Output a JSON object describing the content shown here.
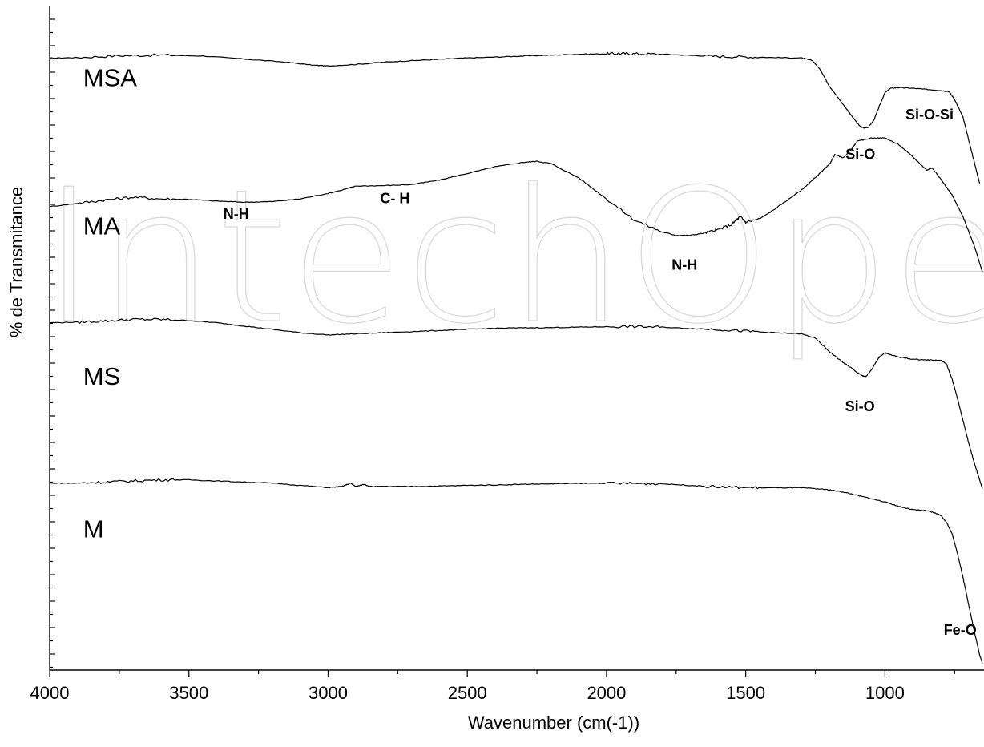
{
  "chart_data": {
    "type": "line",
    "xlabel": "Wavenumber (cm(-1))",
    "ylabel": "% de Transmitance",
    "xlim": [
      4000,
      650
    ],
    "x_direction": "reversed",
    "x_ticks": [
      4000,
      3500,
      3000,
      2500,
      2000,
      1500,
      1000
    ],
    "y_ticks_labeled": false,
    "grid": false,
    "legend": "none",
    "watermark": "IntechOpen",
    "series": [
      {
        "name": "MSA",
        "x": [
          4000,
          3900,
          3750,
          3600,
          3450,
          3300,
          3150,
          3050,
          3000,
          2900,
          2800,
          2700,
          2600,
          2500,
          2400,
          2300,
          2200,
          2100,
          2000,
          1950,
          1900,
          1800,
          1700,
          1600,
          1500,
          1400,
          1300,
          1260,
          1230,
          1200,
          1170,
          1140,
          1110,
          1090,
          1075,
          1060,
          1040,
          1020,
          1000,
          980,
          950,
          900,
          850,
          800,
          770,
          750,
          720,
          700,
          680,
          660
        ],
        "y": [
          76.6,
          76.9,
          77.7,
          78.0,
          77.6,
          76.2,
          74.8,
          73.4,
          73.1,
          73.8,
          74.8,
          75.5,
          76.1,
          76.7,
          77.1,
          77.6,
          78.0,
          78.4,
          78.6,
          78.7,
          78.6,
          78.4,
          77.9,
          77.4,
          77.2,
          76.9,
          76.7,
          75.5,
          71.0,
          64.0,
          59.0,
          54.0,
          49.0,
          45.8,
          45.0,
          45.4,
          48.5,
          55.0,
          61.0,
          63.0,
          63.3,
          63.0,
          62.5,
          62.0,
          61.5,
          58.0,
          50.0,
          40.0,
          30.0,
          20.0
        ]
      },
      {
        "name": "MA",
        "x": [
          4000,
          3900,
          3800,
          3700,
          3600,
          3500,
          3400,
          3300,
          3200,
          3100,
          3000,
          2950,
          2900,
          2800,
          2700,
          2600,
          2500,
          2400,
          2300,
          2250,
          2200,
          2100,
          2000,
          1900,
          1800,
          1750,
          1700,
          1650,
          1600,
          1550,
          1520,
          1500,
          1450,
          1400,
          1350,
          1300,
          1260,
          1230,
          1200,
          1180,
          1150,
          1120,
          1100,
          1050,
          1000,
          950,
          900,
          850,
          830,
          800,
          760,
          720,
          680,
          650
        ],
        "y": [
          9.5,
          11.0,
          12.5,
          13.8,
          13.0,
          12.8,
          12.0,
          11.5,
          11.8,
          13.0,
          15.5,
          17.0,
          18.8,
          19.0,
          19.5,
          21.5,
          24.5,
          27.5,
          29.5,
          30.0,
          29.0,
          22.5,
          13.0,
          3.5,
          -2.0,
          -3.5,
          -3.5,
          -2.5,
          -1.0,
          1.5,
          5.0,
          2.5,
          4.0,
          8.0,
          12.5,
          17.0,
          21.5,
          25.0,
          28.5,
          33.0,
          31.5,
          35.5,
          39.0,
          40.5,
          40.5,
          37.5,
          32.0,
          26.0,
          27.0,
          22.0,
          15.0,
          5.0,
          -8.0,
          -20.0
        ]
      },
      {
        "name": "MS",
        "x": [
          4000,
          3900,
          3800,
          3700,
          3600,
          3500,
          3400,
          3300,
          3200,
          3100,
          3000,
          2900,
          2800,
          2700,
          2600,
          2500,
          2400,
          2300,
          2200,
          2100,
          2000,
          1900,
          1800,
          1700,
          1600,
          1500,
          1400,
          1300,
          1250,
          1200,
          1150,
          1120,
          1100,
          1080,
          1070,
          1050,
          1020,
          1000,
          980,
          950,
          900,
          850,
          800,
          780,
          760,
          740,
          720,
          700,
          680,
          660,
          650
        ],
        "y": [
          -43.0,
          -42.7,
          -42.2,
          -41.5,
          -41.5,
          -42.0,
          -43.0,
          -44.5,
          -46.0,
          -47.5,
          -48.5,
          -48.0,
          -47.5,
          -47.0,
          -46.5,
          -46.0,
          -45.5,
          -45.3,
          -45.2,
          -45.0,
          -44.8,
          -44.7,
          -45.0,
          -45.6,
          -46.0,
          -46.8,
          -47.5,
          -48.0,
          -50.0,
          -56.0,
          -61.0,
          -63.5,
          -65.5,
          -67.0,
          -67.5,
          -64.5,
          -58.5,
          -56.5,
          -57.5,
          -58.5,
          -59.5,
          -59.8,
          -60.0,
          -61.5,
          -68.0,
          -77.0,
          -87.0,
          -97.0,
          -106.0,
          -114.0,
          -118.0
        ]
      },
      {
        "name": "M",
        "x": [
          4000,
          3900,
          3800,
          3700,
          3600,
          3500,
          3400,
          3300,
          3200,
          3100,
          3000,
          2950,
          2920,
          2900,
          2870,
          2850,
          2800,
          2700,
          2600,
          2500,
          2400,
          2300,
          2200,
          2100,
          2000,
          1900,
          1800,
          1700,
          1600,
          1500,
          1400,
          1300,
          1250,
          1200,
          1150,
          1100,
          1050,
          1000,
          950,
          900,
          850,
          820,
          800,
          780,
          760,
          740,
          720,
          700,
          680,
          660,
          650
        ],
        "y": [
          -115.5,
          -115.5,
          -115.0,
          -114.5,
          -114.0,
          -114.0,
          -114.5,
          -115.0,
          -115.5,
          -116.5,
          -117.5,
          -117.0,
          -115.5,
          -117.0,
          -116.0,
          -117.0,
          -117.0,
          -117.0,
          -116.8,
          -116.5,
          -116.3,
          -116.0,
          -115.8,
          -115.6,
          -115.5,
          -115.6,
          -115.8,
          -116.5,
          -117.2,
          -117.5,
          -117.6,
          -117.6,
          -118.0,
          -118.5,
          -119.5,
          -121.0,
          -122.5,
          -124.0,
          -126.0,
          -127.5,
          -128.0,
          -129.0,
          -130.0,
          -133.0,
          -138.0,
          -147.0,
          -158.0,
          -170.0,
          -182.0,
          -193.0,
          -197.0
        ]
      }
    ],
    "series_labels": [
      {
        "text": "MSA",
        "x": 3880,
        "y": 64
      },
      {
        "text": "MA",
        "x": 3880,
        "y": -3
      },
      {
        "text": "MS",
        "x": 3880,
        "y": -71
      },
      {
        "text": "M",
        "x": 3880,
        "y": -140
      }
    ],
    "annotations": [
      {
        "text": "Si-O",
        "x": 1088,
        "y": 31
      },
      {
        "text": "Si-O-Si",
        "x": 840,
        "y": 49
      },
      {
        "text": "N-H",
        "x": 3330,
        "y": 4
      },
      {
        "text": "C- H",
        "x": 2760,
        "y": 11
      },
      {
        "text": "N-H",
        "x": 1720,
        "y": -19
      },
      {
        "text": "Si-O",
        "x": 1090,
        "y": -83
      },
      {
        "text": "Fe-O",
        "x": 730,
        "y": -184
      }
    ]
  }
}
